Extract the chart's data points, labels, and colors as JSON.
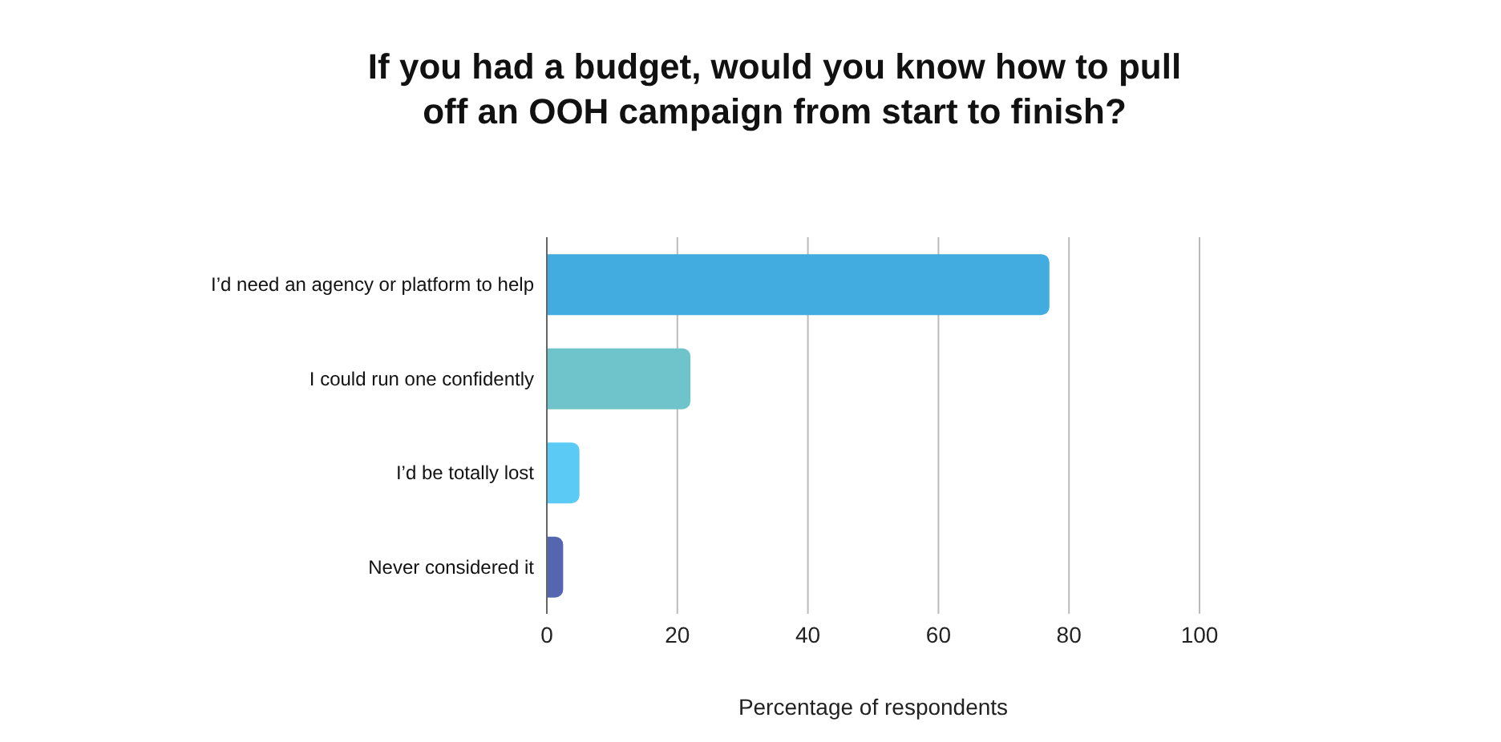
{
  "chart_data": {
    "type": "bar",
    "orientation": "horizontal",
    "title": "If you had a budget, would you know how to pull off an OOH campaign from start to finish?",
    "xlabel": "Percentage of respondents",
    "categories": [
      "I’d need an agency or platform to help",
      "I could run one confidently",
      "I’d be totally lost",
      "Never considered it"
    ],
    "values": [
      77,
      22,
      5,
      2.5
    ],
    "colors": [
      "#42abe0",
      "#6fc3cb",
      "#5bcbf5",
      "#5566b1"
    ],
    "xlim": [
      0,
      100
    ],
    "xticks": [
      0,
      20,
      40,
      60,
      80,
      100
    ],
    "grid": "x"
  }
}
